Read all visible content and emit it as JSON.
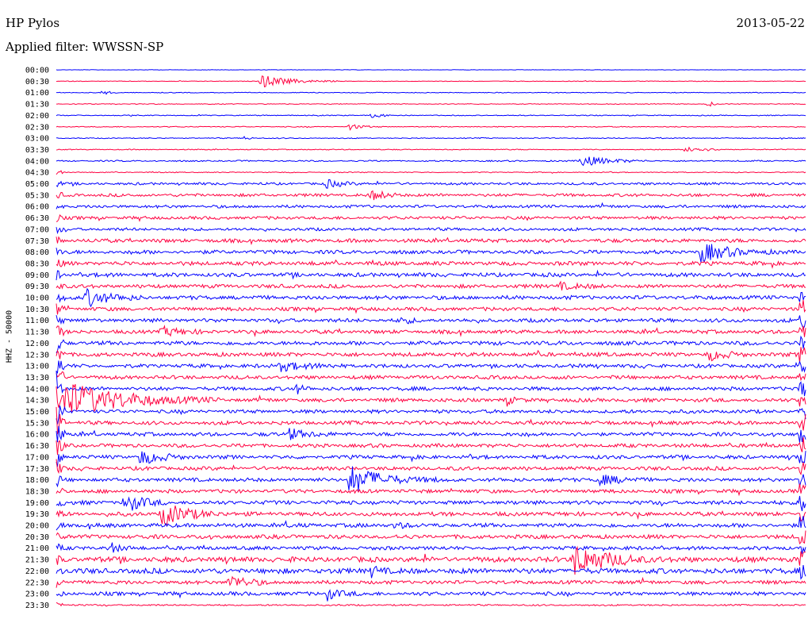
{
  "header": {
    "station": "HP Pylos",
    "date": "2013-05-22",
    "filter": "Applied filter: WWSSN-SP"
  },
  "colors": {
    "trace_a": "#0000ff",
    "trace_b": "#ff0040"
  },
  "chart_data": {
    "type": "line",
    "ylabel": "HHZ - 50000",
    "time_labels": [
      "00:00",
      "00:30",
      "01:00",
      "01:30",
      "02:00",
      "02:30",
      "03:00",
      "03:30",
      "04:00",
      "04:30",
      "05:00",
      "05:30",
      "06:00",
      "06:30",
      "07:00",
      "07:30",
      "08:00",
      "08:30",
      "09:00",
      "09:30",
      "10:00",
      "10:30",
      "11:00",
      "11:30",
      "12:00",
      "12:30",
      "13:00",
      "13:30",
      "14:00",
      "14:30",
      "15:00",
      "15:30",
      "16:00",
      "16:30",
      "17:00",
      "17:30",
      "18:00",
      "18:30",
      "19:00",
      "19:30",
      "20:00",
      "20:30",
      "21:00",
      "21:30",
      "22:00",
      "22:30",
      "23:00",
      "23:30"
    ],
    "noise_levels": [
      0.3,
      0.4,
      0.5,
      0.5,
      0.6,
      0.6,
      0.6,
      0.6,
      0.9,
      0.6,
      1.6,
      1.9,
      1.9,
      2.0,
      1.9,
      2.4,
      2.4,
      2.6,
      2.6,
      2.4,
      2.6,
      2.4,
      2.4,
      2.4,
      2.6,
      2.6,
      2.4,
      2.4,
      2.4,
      2.4,
      2.3,
      2.4,
      2.4,
      2.4,
      2.4,
      2.4,
      2.4,
      2.4,
      2.6,
      2.6,
      2.6,
      2.6,
      2.4,
      3.4,
      3.4,
      2.4,
      2.4,
      1.0
    ],
    "events": [
      {
        "row": 1,
        "x": 0.27,
        "amp": 9,
        "dur": 0.035
      },
      {
        "row": 2,
        "x": 0.06,
        "amp": 3,
        "dur": 0.01
      },
      {
        "row": 3,
        "x": 0.87,
        "amp": 6,
        "dur": 0.004
      },
      {
        "row": 4,
        "x": 0.42,
        "amp": 3,
        "dur": 0.015
      },
      {
        "row": 5,
        "x": 0.39,
        "amp": 4,
        "dur": 0.015
      },
      {
        "row": 6,
        "x": 0.25,
        "amp": 4,
        "dur": 0.006
      },
      {
        "row": 7,
        "x": 0.84,
        "amp": 5,
        "dur": 0.02
      },
      {
        "row": 8,
        "x": 0.7,
        "amp": 8,
        "dur": 0.03
      },
      {
        "row": 10,
        "x": 0.36,
        "amp": 5,
        "dur": 0.02
      },
      {
        "row": 11,
        "x": 0.42,
        "amp": 6,
        "dur": 0.02
      },
      {
        "row": 16,
        "x": 0.86,
        "amp": 12,
        "dur": 0.035
      },
      {
        "row": 19,
        "x": 0.67,
        "amp": 5,
        "dur": 0.02
      },
      {
        "row": 20,
        "x": 0.04,
        "amp": 12,
        "dur": 0.025
      },
      {
        "row": 22,
        "x": 0.46,
        "amp": 5,
        "dur": 0.01
      },
      {
        "row": 23,
        "x": 0.14,
        "amp": 7,
        "dur": 0.02
      },
      {
        "row": 25,
        "x": 0.87,
        "amp": 7,
        "dur": 0.02
      },
      {
        "row": 26,
        "x": 0.3,
        "amp": 6,
        "dur": 0.03
      },
      {
        "row": 28,
        "x": 0.32,
        "amp": 6,
        "dur": 0.01
      },
      {
        "row": 29,
        "x": 0.01,
        "amp": 24,
        "dur": 0.07
      },
      {
        "row": 29,
        "x": 0.6,
        "amp": 5,
        "dur": 0.01
      },
      {
        "row": 32,
        "x": 0.31,
        "amp": 8,
        "dur": 0.02
      },
      {
        "row": 34,
        "x": 0.11,
        "amp": 10,
        "dur": 0.025
      },
      {
        "row": 36,
        "x": 0.39,
        "amp": 18,
        "dur": 0.04
      },
      {
        "row": 36,
        "x": 0.72,
        "amp": 8,
        "dur": 0.025
      },
      {
        "row": 38,
        "x": 0.09,
        "amp": 14,
        "dur": 0.02
      },
      {
        "row": 39,
        "x": 0.14,
        "amp": 16,
        "dur": 0.03
      },
      {
        "row": 40,
        "x": 0.45,
        "amp": 6,
        "dur": 0.01
      },
      {
        "row": 42,
        "x": 0.07,
        "amp": 8,
        "dur": 0.01
      },
      {
        "row": 43,
        "x": 0.69,
        "amp": 20,
        "dur": 0.04
      },
      {
        "row": 44,
        "x": 0.42,
        "amp": 8,
        "dur": 0.01
      },
      {
        "row": 45,
        "x": 0.23,
        "amp": 10,
        "dur": 0.02
      },
      {
        "row": 46,
        "x": 0.36,
        "amp": 9,
        "dur": 0.015
      }
    ],
    "big_event_left": {
      "rows": [
        9,
        48
      ],
      "x": 0.0,
      "amp": 8
    },
    "big_event_right": {
      "rows": [
        20,
        44
      ],
      "x": 0.997,
      "amp": 7
    }
  }
}
